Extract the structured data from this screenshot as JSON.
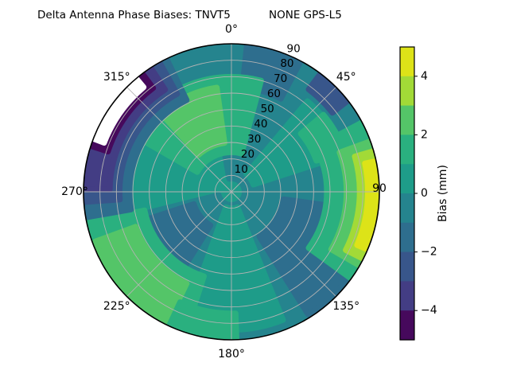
{
  "title": {
    "left": "Delta Antenna Phase Biases: TNVT5",
    "right": "NONE GPS-L5"
  },
  "chart_data": {
    "type": "heatmap",
    "projection": "polar",
    "title": "Delta Antenna Phase Biases: TNVT5        NONE GPS-L5",
    "theta_direction": "clockwise",
    "theta_zero_location": "top",
    "theta_labels": [
      {
        "text": "0°",
        "az": 0
      },
      {
        "text": "45°",
        "az": 45
      },
      {
        "text": "90",
        "az": 90
      },
      {
        "text": "135°",
        "az": 135
      },
      {
        "text": "180°",
        "az": 180
      },
      {
        "text": "225°",
        "az": 225
      },
      {
        "text": "270°",
        "az": 270
      },
      {
        "text": "315°",
        "az": 315
      }
    ],
    "r_ticks": [
      "10",
      "20",
      "30",
      "40",
      "50",
      "60",
      "70",
      "80",
      "90"
    ],
    "r_max": 90,
    "grid_on": true,
    "grid_color": "#b3b3b3",
    "levels": [
      -5,
      -4,
      -3,
      -2,
      -1,
      0,
      1,
      2,
      3,
      4,
      5
    ],
    "band_colors_top_to_bottom": [
      "#dde318",
      "#a2da37",
      "#54c568",
      "#2ab07f",
      "#1e9c89",
      "#25848e",
      "#2e6e8e",
      "#38568b",
      "#433d84",
      "#46095c"
    ],
    "colorbar": {
      "label": "Bias (mm)",
      "tick_labels": [
        "4",
        "2",
        "0",
        "−2",
        "−4"
      ],
      "tick_values": [
        4,
        2,
        0,
        -2,
        -4
      ],
      "vmin": -5,
      "vmax": 5
    },
    "grid_estimate": {
      "comment": "Estimated bias (mm) read from contour colors",
      "azimuth_deg": [
        0,
        45,
        90,
        135,
        180,
        225,
        270,
        315
      ],
      "zenith_deg": [
        10,
        30,
        50,
        70,
        85
      ],
      "bias_mm": [
        [
          -0.5,
          1.5,
          1.5,
          -0.5,
          -0.5
        ],
        [
          -0.5,
          0.5,
          0.5,
          1.5,
          -2.5
        ],
        [
          -0.5,
          -0.5,
          -0.5,
          1.5,
          4.5
        ],
        [
          -0.5,
          -1.5,
          -1.5,
          -1.5,
          -0.5
        ],
        [
          0.5,
          0.5,
          0.5,
          -0.5,
          1.5
        ],
        [
          -0.5,
          -1.5,
          -0.5,
          2.5,
          2.5
        ],
        [
          0.5,
          0.5,
          0.5,
          -1.5,
          -3.5
        ],
        [
          0.5,
          1.5,
          1.5,
          -1.5,
          -4.5
        ]
      ]
    },
    "base_value": 0.5,
    "features": [
      {
        "name": "east-south-teal-region",
        "az1": 350,
        "az2": 616,
        "z1": 8,
        "z2": 90,
        "value": -0.5
      },
      {
        "name": "north-teal-band",
        "az1": 333,
        "az2": 410,
        "z1": 46,
        "z2": 90,
        "value": -0.5
      },
      {
        "name": "northeast-green-teal-wedge",
        "az1": 40,
        "az2": 72,
        "z1": 14,
        "z2": 72,
        "value": 0.5
      },
      {
        "name": "south-green-teal-wedge",
        "az1": 158,
        "az2": 200,
        "z1": 10,
        "z2": 84,
        "value": 0.5
      },
      {
        "name": "north-blue-patch",
        "az1": 6,
        "az2": 28,
        "z1": 64,
        "z2": 90,
        "value": -1.5
      },
      {
        "name": "northeast-indigo-spot",
        "az1": 37,
        "az2": 52,
        "z1": 78,
        "z2": 90,
        "value": -2.5
      },
      {
        "name": "southeast-blue-blob",
        "az1": 98,
        "az2": 148,
        "z1": 32,
        "z2": 88,
        "value": -1.5
      },
      {
        "name": "southwest-blue-blob",
        "az1": 212,
        "az2": 252,
        "z1": 24,
        "z2": 58,
        "value": -1.5
      },
      {
        "name": "northwest-green-blob",
        "az1": 300,
        "az2": 375,
        "z1": 24,
        "z2": 70,
        "value": 1.5
      },
      {
        "name": "northwest-green-core",
        "az1": 318,
        "az2": 352,
        "z1": 30,
        "z2": 64,
        "value": 2.5
      },
      {
        "name": "northeast-green-patch",
        "az1": 50,
        "az2": 70,
        "z1": 55,
        "z2": 73,
        "value": 1.5
      },
      {
        "name": "southwest-green-arc",
        "az1": 198,
        "az2": 258,
        "z1": 54,
        "z2": 90,
        "value": 1.5
      },
      {
        "name": "southwest-green-core",
        "az1": 206,
        "az2": 250,
        "z1": 62,
        "z2": 88,
        "value": 2.5
      },
      {
        "name": "south-green-patch",
        "az1": 178,
        "az2": 205,
        "z1": 74,
        "z2": 90,
        "value": 1.5
      },
      {
        "name": "east-crescent-green",
        "az1": 62,
        "az2": 126,
        "z1": 58,
        "z2": 90,
        "value": 1.5
      },
      {
        "name": "east-crescent-lightgreen",
        "az1": 70,
        "az2": 120,
        "z1": 70,
        "z2": 90,
        "value": 2.5
      },
      {
        "name": "east-crescent-yellowgreen",
        "az1": 74,
        "az2": 117,
        "z1": 78,
        "z2": 90,
        "value": 3.5
      },
      {
        "name": "east-crescent-yellow",
        "az1": 78,
        "az2": 113,
        "z1": 83,
        "z2": 90,
        "value": 4.5
      },
      {
        "name": "west-crescent-blueteal",
        "az1": 260,
        "az2": 334,
        "z1": 62,
        "z2": 90,
        "value": -1.5
      },
      {
        "name": "west-crescent-blue",
        "az1": 266,
        "az2": 331,
        "z1": 68,
        "z2": 90,
        "value": -2.5
      },
      {
        "name": "west-crescent-indigo",
        "az1": 271,
        "az2": 327,
        "z1": 74,
        "z2": 90,
        "value": -3.5
      },
      {
        "name": "west-crescent-purple",
        "az1": 288,
        "az2": 323,
        "z1": 79,
        "z2": 90,
        "value": -4.5
      },
      {
        "name": "nodata-white-notch",
        "az1": 291,
        "az2": 320,
        "z1": 83,
        "z2": 90,
        "value": null,
        "color": "#ffffff"
      }
    ]
  }
}
